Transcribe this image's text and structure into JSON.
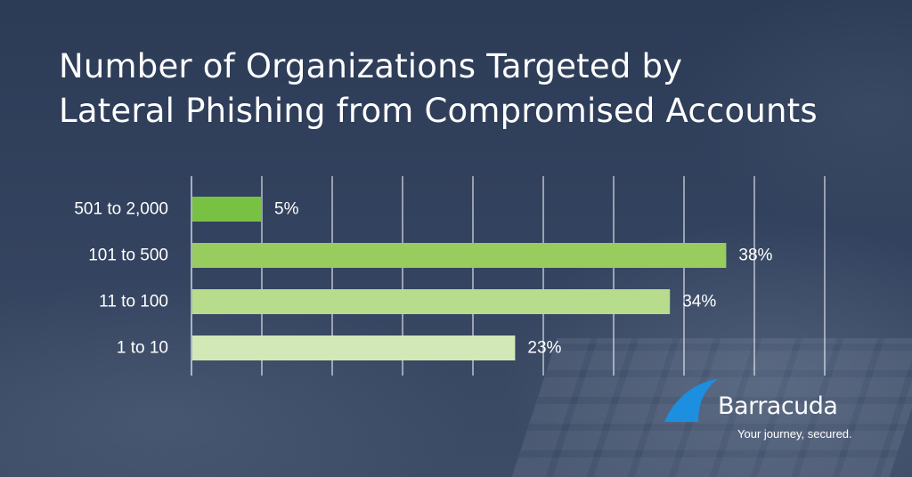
{
  "title_lines": [
    "Number of Organizations Targeted by",
    "Lateral Phishing from Compromised Accounts"
  ],
  "brand": {
    "name": "Barracuda",
    "tagline": "Your journey, secured.",
    "icon": "barracuda-fin-logo",
    "color": "#1c8fe0"
  },
  "chart_data": {
    "type": "bar",
    "orientation": "horizontal",
    "categories": [
      "501 to 2,000",
      "101 to 500",
      "11 to 100",
      "1 to 10"
    ],
    "values": [
      5,
      38,
      34,
      23
    ],
    "value_labels": [
      "5%",
      "38%",
      "34%",
      "23%"
    ],
    "bar_colors": [
      "#79c142",
      "#98cc5f",
      "#b6dc8c",
      "#d2e8b7"
    ],
    "xlim": [
      0,
      45
    ],
    "grid": true,
    "gridline_step": 5,
    "legend": "none"
  }
}
